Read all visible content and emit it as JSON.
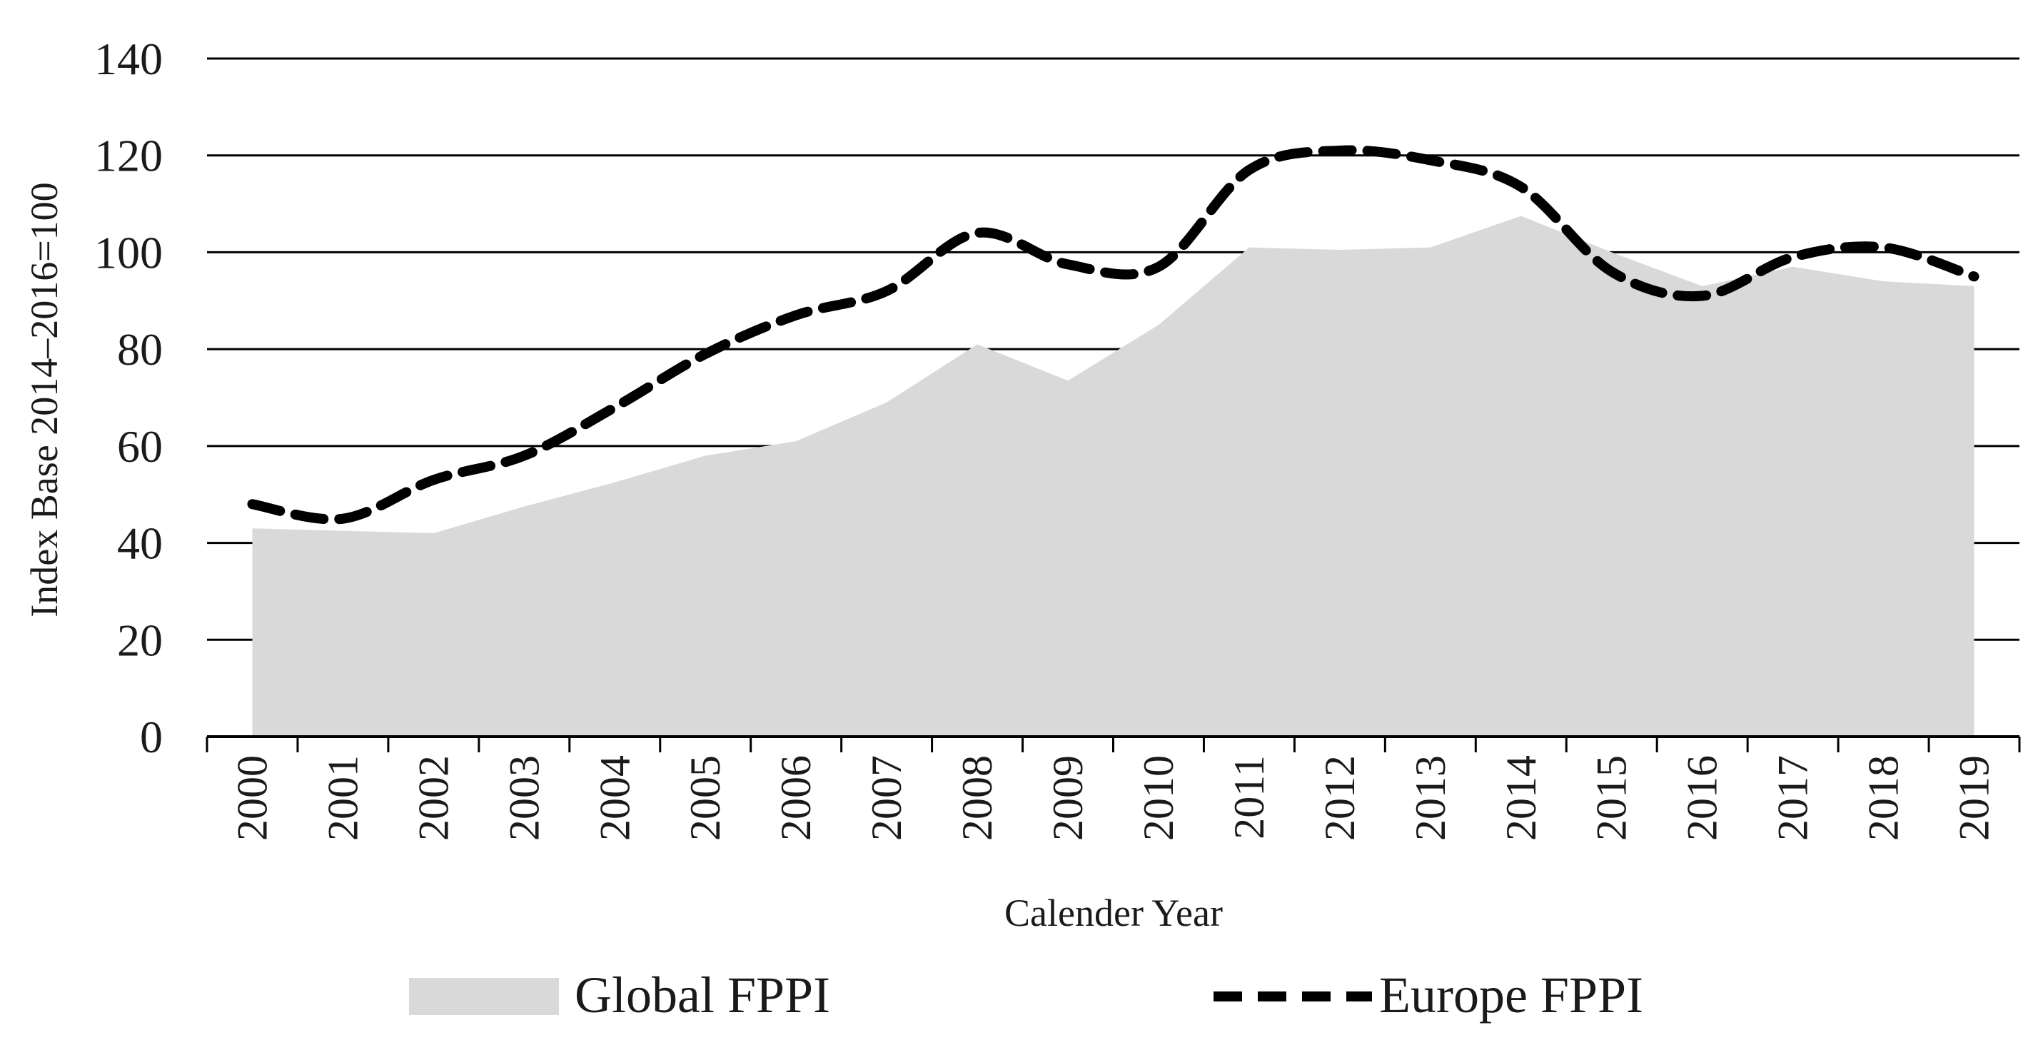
{
  "chart_data": {
    "type": "area",
    "title": "",
    "xlabel": "Calender Year",
    "ylabel": "Index Base 2014–2016=100",
    "ylim": [
      0,
      140
    ],
    "yticks": [
      "0",
      "20",
      "40",
      "60",
      "80",
      "100",
      "120",
      "140"
    ],
    "categories": [
      "2000",
      "2001",
      "2002",
      "2003",
      "2004",
      "2005",
      "2006",
      "2007",
      "2008",
      "2009",
      "2010",
      "2011",
      "2012",
      "2013",
      "2014",
      "2015",
      "2016",
      "2017",
      "2018",
      "2019"
    ],
    "grid": true,
    "legend_position": "bottom",
    "series": [
      {
        "name": "Global FPPI",
        "style": "area",
        "color": "#d9d9d9",
        "values": [
          43,
          42.5,
          42,
          47.5,
          52.5,
          58,
          61,
          69,
          81,
          73.5,
          85,
          101,
          100.5,
          101,
          107.5,
          100,
          93,
          97,
          94,
          93
        ]
      },
      {
        "name": "Europe FPPI",
        "style": "dashed-line",
        "color": "#000000",
        "values": [
          48,
          45,
          53,
          58,
          68,
          79,
          87,
          92,
          104,
          97.5,
          97,
          117,
          121,
          119,
          113.5,
          96,
          91,
          99,
          101,
          95
        ]
      }
    ]
  }
}
